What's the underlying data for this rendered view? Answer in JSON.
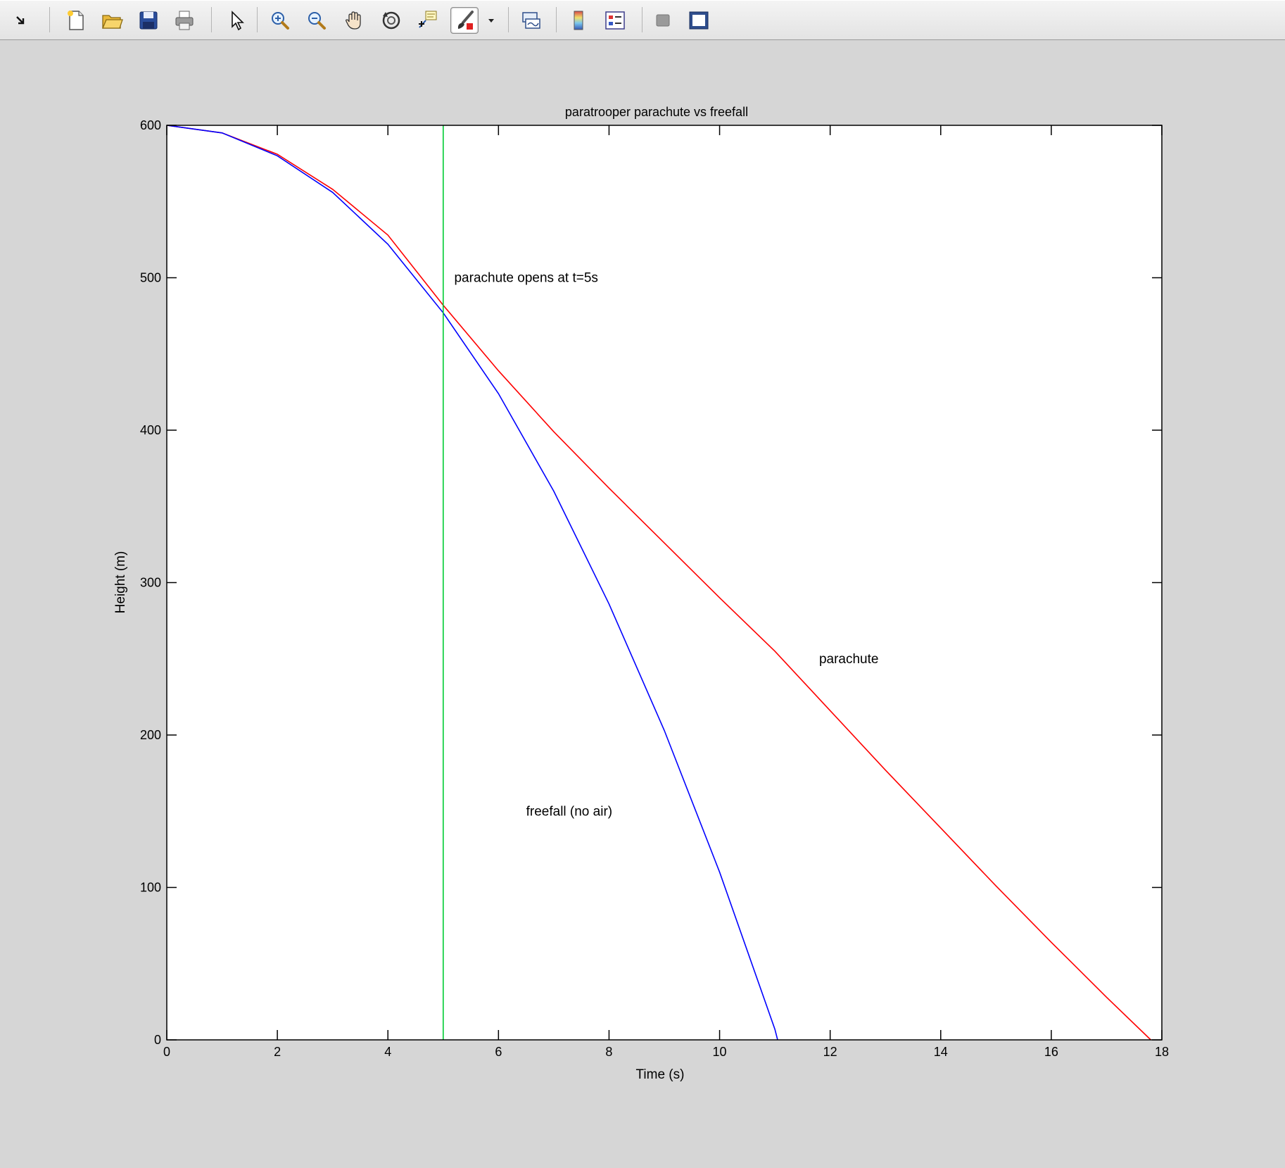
{
  "toolbar": {
    "items": [
      {
        "name": "dock-arrow-icon"
      },
      {
        "name": "new-figure-icon"
      },
      {
        "name": "open-file-icon"
      },
      {
        "name": "save-figure-icon"
      },
      {
        "name": "print-figure-icon"
      },
      {
        "name": "edit-plot-arrow-icon"
      },
      {
        "name": "zoom-in-icon"
      },
      {
        "name": "zoom-out-icon"
      },
      {
        "name": "pan-hand-icon"
      },
      {
        "name": "rotate-3d-icon"
      },
      {
        "name": "data-cursor-icon"
      },
      {
        "name": "brush-data-icon"
      },
      {
        "name": "link-plot-icon"
      },
      {
        "name": "insert-colorbar-icon"
      },
      {
        "name": "insert-legend-icon"
      },
      {
        "name": "hide-plot-tools-icon"
      },
      {
        "name": "show-plot-tools-icon"
      }
    ]
  },
  "chart_data": {
    "type": "line",
    "title": "paratrooper parachute vs freefall",
    "xlabel": "Time (s)",
    "ylabel": "Height (m)",
    "xlim": [
      0,
      18
    ],
    "ylim": [
      0,
      600
    ],
    "xticks": [
      0,
      2,
      4,
      6,
      8,
      10,
      12,
      14,
      16,
      18
    ],
    "yticks": [
      0,
      100,
      200,
      300,
      400,
      500,
      600
    ],
    "grid": false,
    "series": [
      {
        "color": "#ff0000",
        "x": [
          0,
          1,
          2,
          3,
          4,
          5,
          6,
          7,
          8,
          9,
          10,
          11,
          12,
          13,
          14,
          15,
          16,
          17,
          17.8
        ],
        "y": [
          600,
          595,
          581,
          558,
          528,
          482,
          439,
          399,
          362,
          326,
          290,
          255,
          216,
          177,
          139,
          101,
          64,
          28,
          0
        ]
      },
      {
        "color": "#0000ff",
        "x": [
          0,
          1,
          2,
          3,
          4,
          5,
          6,
          7,
          8,
          9,
          10,
          11,
          11.05
        ],
        "y": [
          600,
          595,
          580,
          556,
          522,
          477,
          424,
          360,
          286,
          203,
          110,
          7,
          0
        ]
      },
      {
        "color": "#00cc33",
        "x": [
          5,
          5
        ],
        "y": [
          0,
          600
        ]
      }
    ],
    "annotations": [
      {
        "text": "parachute opens at t=5s",
        "x": 5.2,
        "y": 500
      },
      {
        "text": "parachute",
        "x": 11.8,
        "y": 250
      },
      {
        "text": "freefall (no air)",
        "x": 6.5,
        "y": 150
      }
    ]
  }
}
